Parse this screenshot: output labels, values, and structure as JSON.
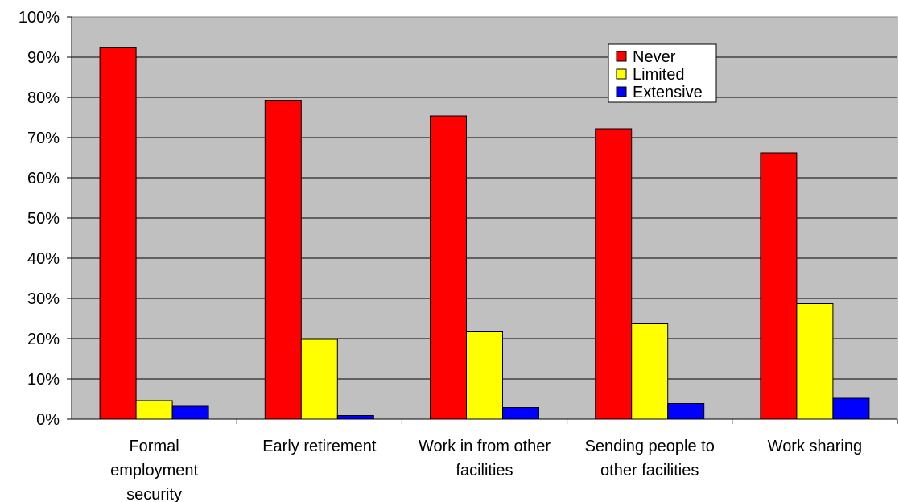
{
  "chart_data": {
    "type": "bar",
    "title": "",
    "xlabel": "",
    "ylabel": "",
    "ylim": [
      0,
      100
    ],
    "y_ticks": [
      "0%",
      "10%",
      "20%",
      "30%",
      "40%",
      "50%",
      "60%",
      "70%",
      "80%",
      "90%",
      "100%"
    ],
    "categories": [
      [
        "Formal",
        "employment",
        "security"
      ],
      [
        "Early retirement"
      ],
      [
        "Work in from other",
        "facilities"
      ],
      [
        "Sending people to",
        "other facilities"
      ],
      [
        "Work sharing"
      ]
    ],
    "series": [
      {
        "name": "Never",
        "color": "#ff0000",
        "values": [
          92.3,
          79.3,
          75.4,
          72.2,
          66.2
        ]
      },
      {
        "name": "Limited",
        "color": "#ffff00",
        "values": [
          4.6,
          19.8,
          21.7,
          23.7,
          28.7
        ]
      },
      {
        "name": "Extensive",
        "color": "#0000ff",
        "values": [
          3.2,
          0.9,
          2.9,
          3.9,
          5.2
        ]
      }
    ],
    "grid": true,
    "legend_position": "top-right",
    "plot_background": "#c0c0c0"
  }
}
